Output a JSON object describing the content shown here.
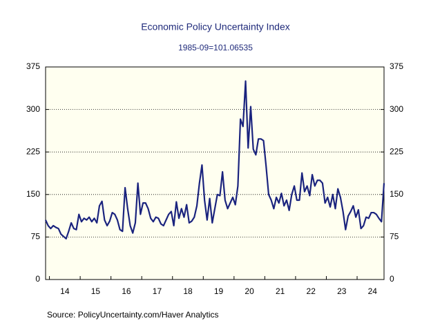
{
  "chart_data": {
    "type": "line",
    "title": "Economic Policy Uncertainty Index",
    "subtitle": "1985-09=101.06535",
    "source": "Source:  PolicyUncertainty.com/Haver Analytics",
    "categories": [
      null,
      null,
      null,
      null,
      null,
      null,
      null,
      "14",
      null,
      null,
      null,
      null,
      null,
      null,
      null,
      null,
      null,
      null,
      null,
      "15",
      null,
      null,
      null,
      null,
      null,
      null,
      null,
      null,
      null,
      null,
      null,
      "16",
      null,
      null,
      null,
      null,
      null,
      null,
      null,
      null,
      null,
      null,
      null,
      "17",
      null,
      null,
      null,
      null,
      null,
      null,
      null,
      null,
      null,
      null,
      null,
      "18",
      null,
      null,
      null,
      null,
      null,
      null,
      null,
      null,
      null,
      null,
      null,
      "19",
      null,
      null,
      null,
      null,
      null,
      null,
      null,
      null,
      null,
      null,
      null,
      "20",
      null,
      null,
      null,
      null,
      null,
      null,
      null,
      null,
      null,
      null,
      null,
      "21",
      null,
      null,
      null,
      null,
      null,
      null,
      null,
      null,
      null,
      null,
      null,
      "22",
      null,
      null,
      null,
      null,
      null,
      null,
      null,
      null,
      null,
      null,
      null,
      "23",
      null,
      null,
      null,
      null,
      null,
      null,
      null,
      null,
      null,
      null,
      null,
      "24",
      null,
      null,
      null,
      null,
      null
    ],
    "series": [
      {
        "name": "Economic Policy Uncertainty Index",
        "color": "#1a237e",
        "values": [
          105,
          95,
          90,
          95,
          92,
          90,
          80,
          76,
          72,
          85,
          100,
          90,
          88,
          115,
          102,
          108,
          105,
          110,
          102,
          108,
          100,
          130,
          138,
          105,
          95,
          103,
          118,
          115,
          105,
          88,
          85,
          162,
          125,
          95,
          82,
          100,
          170,
          115,
          135,
          135,
          125,
          108,
          102,
          110,
          108,
          98,
          95,
          105,
          115,
          120,
          95,
          137,
          108,
          125,
          110,
          132,
          100,
          103,
          110,
          130,
          170,
          202,
          140,
          105,
          143,
          100,
          125,
          150,
          148,
          190,
          140,
          125,
          135,
          145,
          132,
          165,
          283,
          270,
          350,
          232,
          305,
          230,
          220,
          248,
          248,
          245,
          200,
          150,
          140,
          125,
          145,
          135,
          152,
          130,
          140,
          122,
          150,
          165,
          140,
          140,
          188,
          155,
          165,
          148,
          185,
          165,
          175,
          175,
          170,
          135,
          145,
          128,
          150,
          125,
          160,
          145,
          120,
          88,
          112,
          120,
          130,
          110,
          123,
          90,
          95,
          110,
          108,
          118,
          118,
          115,
          108,
          102,
          170
        ]
      }
    ],
    "ylim": [
      0,
      375
    ],
    "yticks": [
      0,
      75,
      150,
      225,
      300,
      375
    ],
    "grid": true
  }
}
